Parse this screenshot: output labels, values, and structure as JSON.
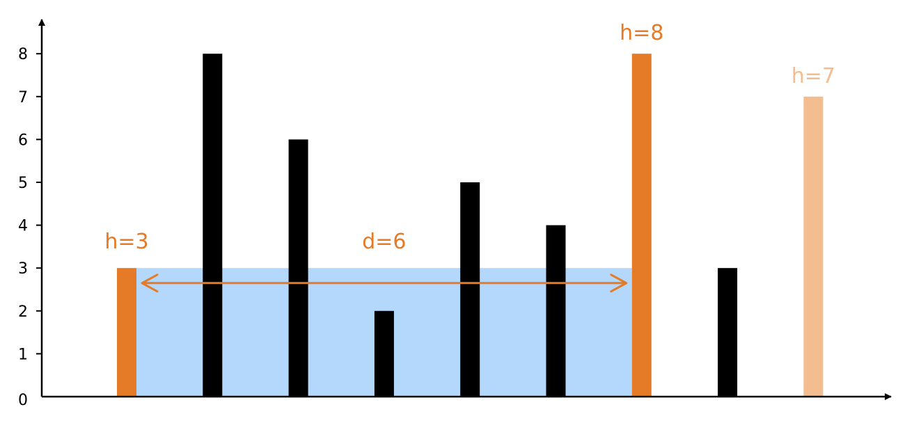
{
  "chart_data": {
    "type": "bar",
    "x": [
      1,
      2,
      3,
      4,
      5,
      6,
      7,
      8,
      9
    ],
    "values": [
      3,
      8,
      6,
      2,
      5,
      4,
      8,
      3,
      7
    ],
    "ylim": [
      0,
      8
    ],
    "yticks": [
      0,
      1,
      2,
      3,
      4,
      5,
      6,
      7,
      8
    ],
    "ytick_labels": [
      "0",
      "1",
      "2",
      "3",
      "4",
      "5",
      "6",
      "7",
      "8"
    ],
    "grid": false,
    "highlight": {
      "left_index": 0,
      "right_index": 6,
      "faded_index": 8
    },
    "water_level": 3,
    "arrow_level": 2.65,
    "annotations": {
      "left_height": "h=3",
      "right_height": "h=8",
      "faded_height": "h=7",
      "distance": "d=6"
    },
    "colors": {
      "default_bar": "#000000",
      "highlight_bar": "#e57a27",
      "faded_bar": "#f4bd8f",
      "water": "#b3d8fb",
      "arrow": "#e57a27",
      "axis": "#000000",
      "annotation_text": "#e57a27",
      "faded_text": "#f4bd8f"
    }
  }
}
